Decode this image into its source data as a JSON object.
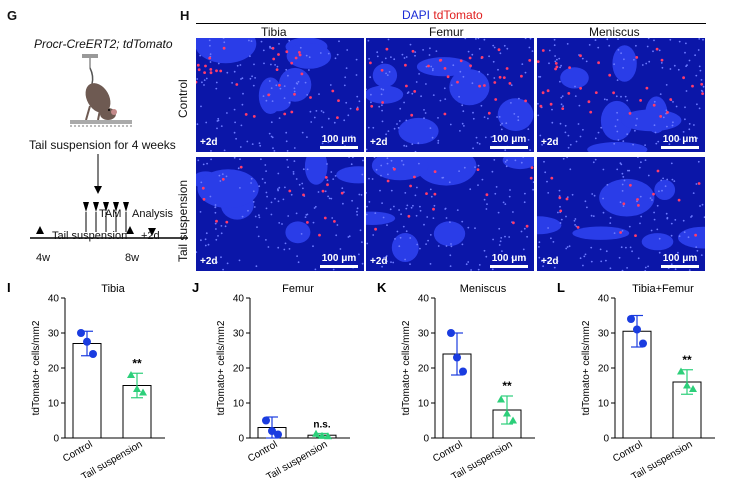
{
  "panel_g": {
    "label": "G",
    "genotype": "Procr-CreERT2; tdTomato",
    "treatment": "Tail suspension for 4 weeks",
    "tam": "TAM",
    "analysis": "Analysis",
    "tail": "Tail suspension",
    "plus2d": "+2d",
    "w4": "4w",
    "w8": "8w"
  },
  "panel_h": {
    "label": "H",
    "dapi": "DAPI",
    "tdtomato": "tdTomato",
    "columns": [
      "Tibia",
      "Femur",
      "Meniscus"
    ],
    "rows": [
      "Control",
      "Tail suspension"
    ],
    "time": "+2d",
    "scale": "100 μm"
  },
  "chart_data": [
    {
      "panel": "I",
      "type": "bar",
      "title": "Tibia",
      "ylabel": "tdTomato+ cells/mm2",
      "categories": [
        "Control",
        "Tail suspension"
      ],
      "values": [
        27,
        15
      ],
      "sd": [
        3.5,
        3.5
      ],
      "points": [
        [
          30,
          27.5,
          24
        ],
        [
          18,
          14,
          13
        ]
      ],
      "significance": "**",
      "ylim": [
        0,
        40
      ],
      "yticks": [
        0,
        10,
        20,
        30,
        40
      ]
    },
    {
      "panel": "J",
      "type": "bar",
      "title": "Femur",
      "ylabel": "tdTomato+ cells/mm2",
      "categories": [
        "Control",
        "Tail suspension"
      ],
      "values": [
        3,
        0.8
      ],
      "sd": [
        3,
        0.5
      ],
      "points": [
        [
          5,
          2,
          1
        ],
        [
          1.2,
          0.6,
          0.5
        ]
      ],
      "significance": "n.s.",
      "ylim": [
        0,
        40
      ],
      "yticks": [
        0,
        10,
        20,
        30,
        40
      ]
    },
    {
      "panel": "K",
      "type": "bar",
      "title": "Meniscus",
      "ylabel": "tdTomato+ cells/mm2",
      "categories": [
        "Control",
        "Tail suspension"
      ],
      "values": [
        24,
        8
      ],
      "sd": [
        6,
        4
      ],
      "points": [
        [
          30,
          23,
          19
        ],
        [
          11,
          7,
          5
        ]
      ],
      "significance": "**",
      "ylim": [
        0,
        40
      ],
      "yticks": [
        0,
        10,
        20,
        30,
        40
      ]
    },
    {
      "panel": "L",
      "type": "bar",
      "title": "Tibia+Femur",
      "ylabel": "tdTomato+ cells/mm2",
      "categories": [
        "Control",
        "Tail suspension"
      ],
      "values": [
        30.5,
        16
      ],
      "sd": [
        4.5,
        3.5
      ],
      "points": [
        [
          34,
          31,
          27
        ],
        [
          19,
          15,
          14
        ]
      ],
      "significance": "**",
      "ylim": [
        0,
        40
      ],
      "yticks": [
        0,
        10,
        20,
        30,
        40
      ]
    }
  ]
}
